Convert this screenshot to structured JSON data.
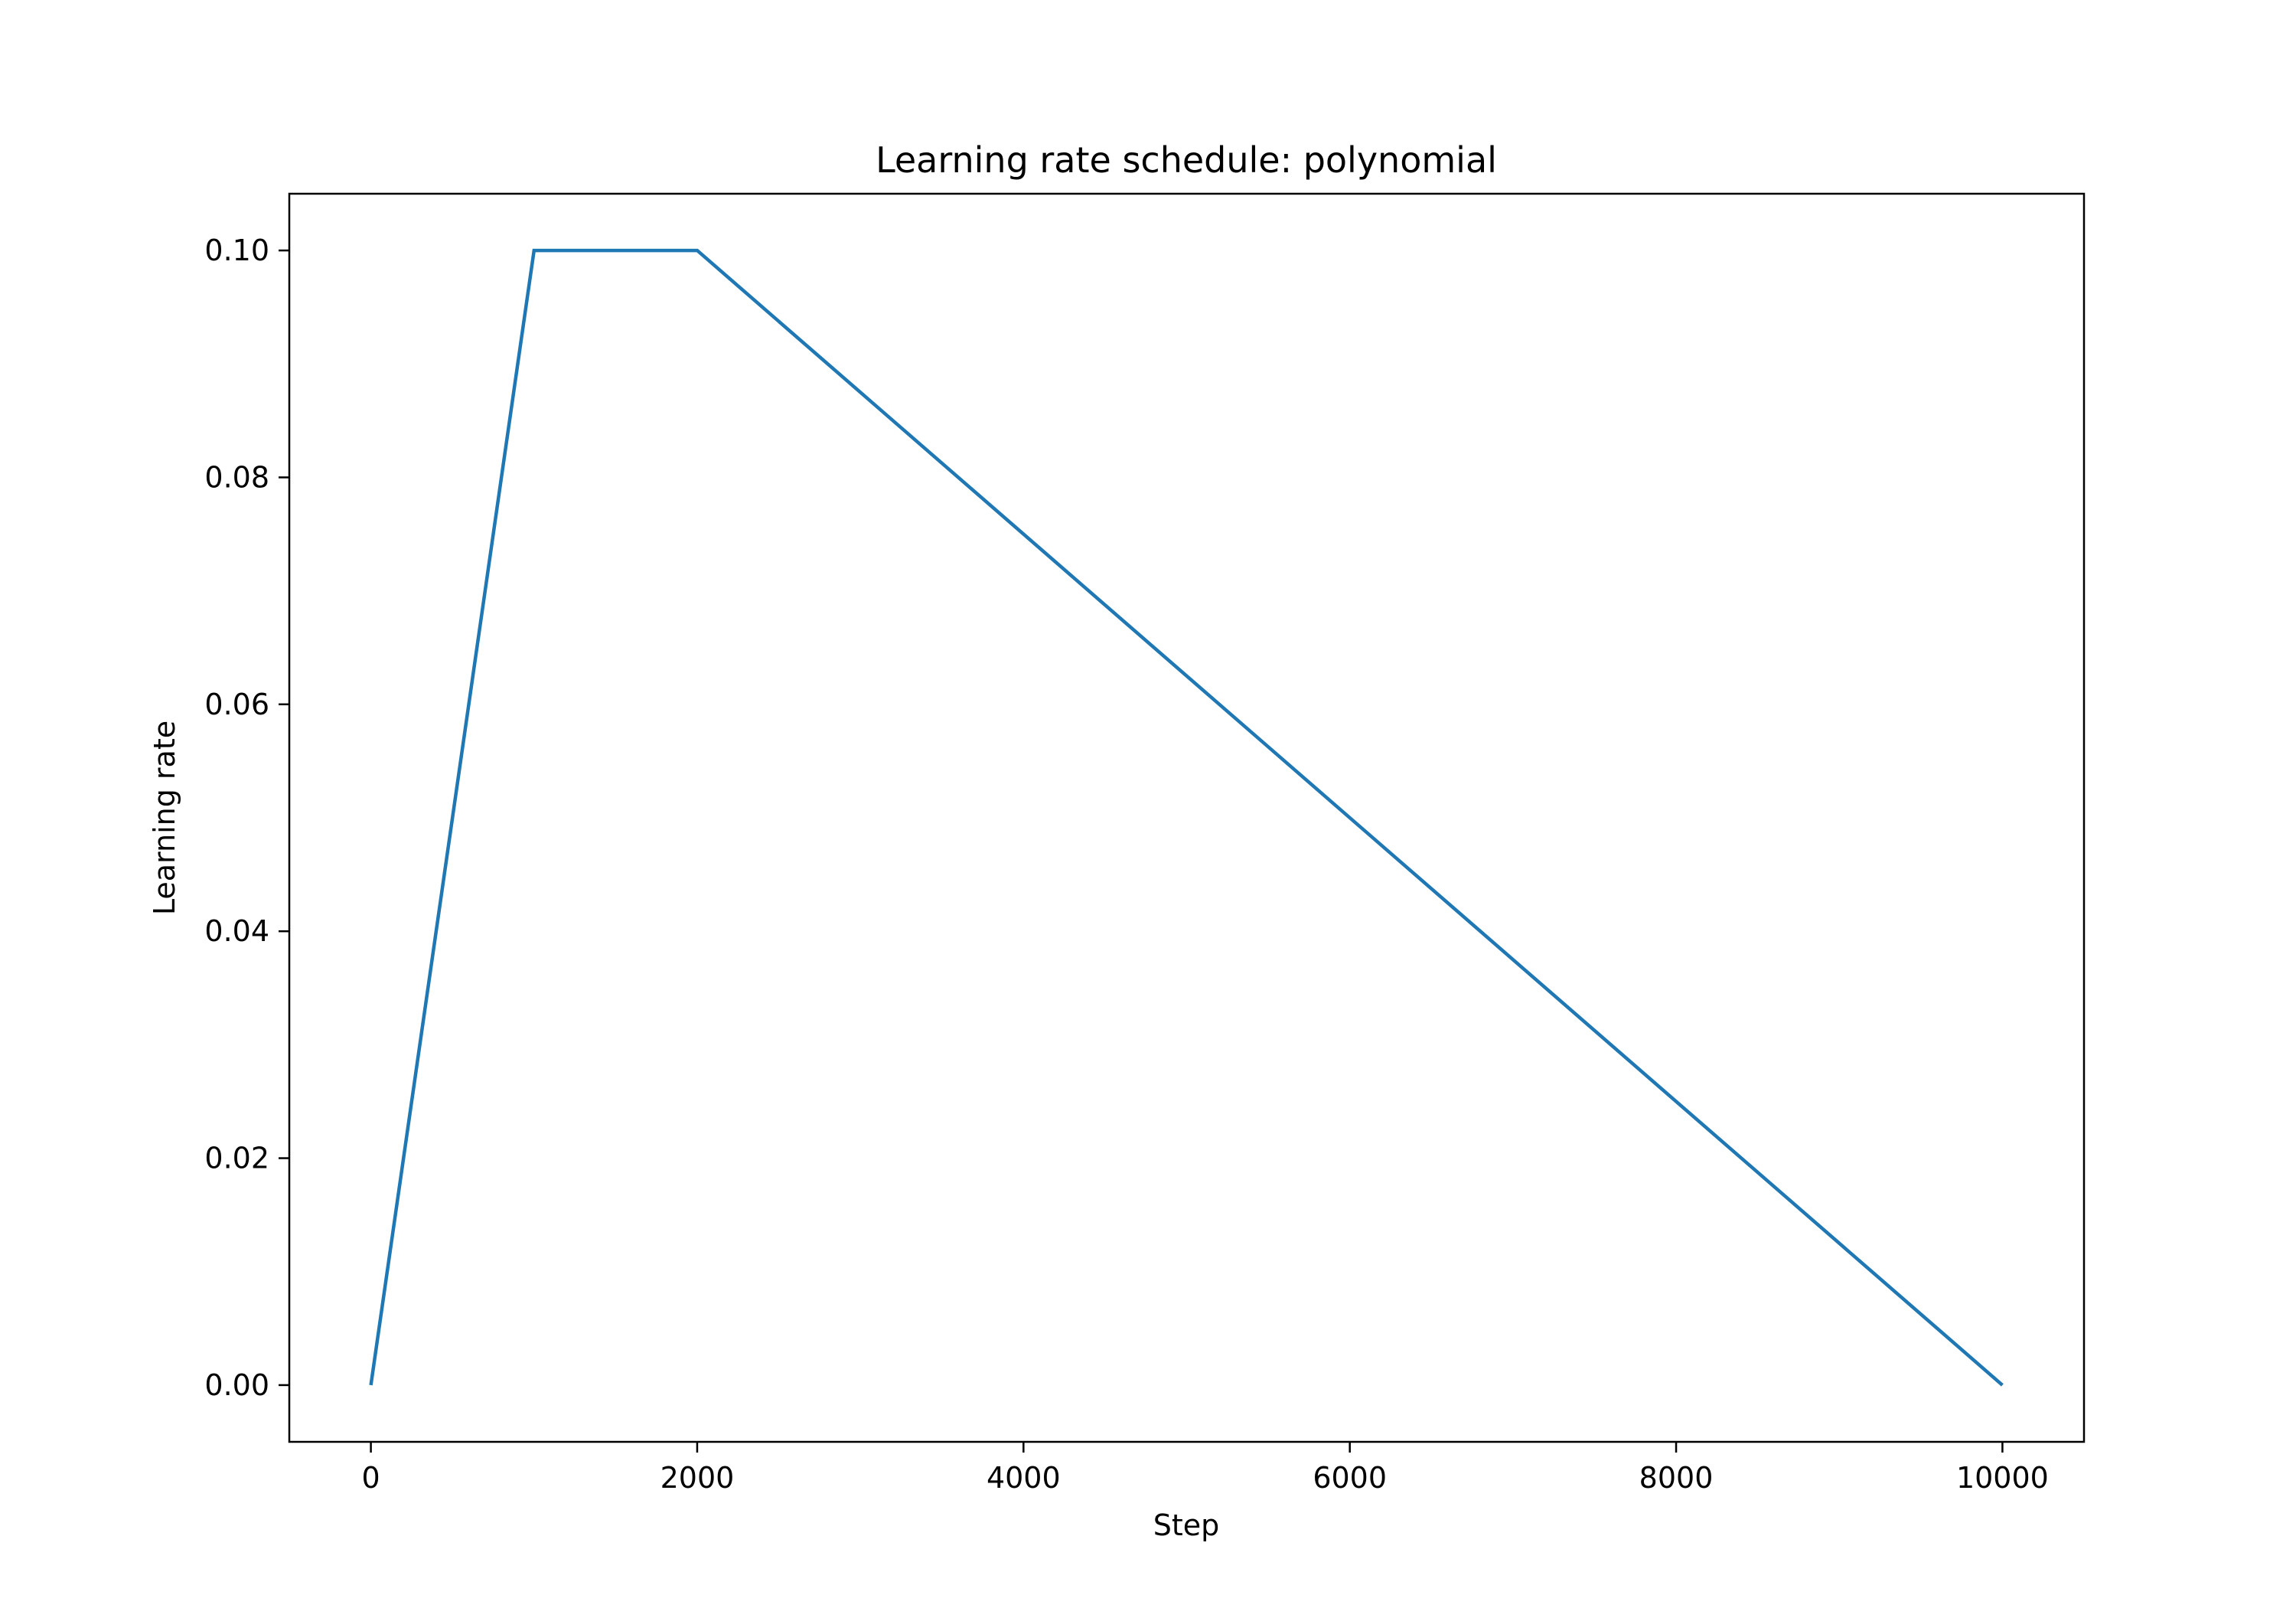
{
  "chart_data": {
    "type": "line",
    "title": "Learning rate schedule: polynomial",
    "xlabel": "Step",
    "ylabel": "Learning rate",
    "xlim": [
      -500,
      10500
    ],
    "ylim": [
      -0.005,
      0.105
    ],
    "x_ticks": [
      0,
      2000,
      4000,
      6000,
      8000,
      10000
    ],
    "x_tick_labels": [
      "0",
      "2000",
      "4000",
      "6000",
      "8000",
      "10000"
    ],
    "y_ticks": [
      0.0,
      0.02,
      0.04,
      0.06,
      0.08,
      0.1
    ],
    "y_tick_labels": [
      "0.00",
      "0.02",
      "0.04",
      "0.06",
      "0.08",
      "0.10"
    ],
    "grid": false,
    "series": [
      {
        "color": "#1f77b4",
        "x": [
          0,
          1000,
          2000,
          10000
        ],
        "y": [
          0.0,
          0.1,
          0.1,
          0.0
        ]
      }
    ]
  }
}
